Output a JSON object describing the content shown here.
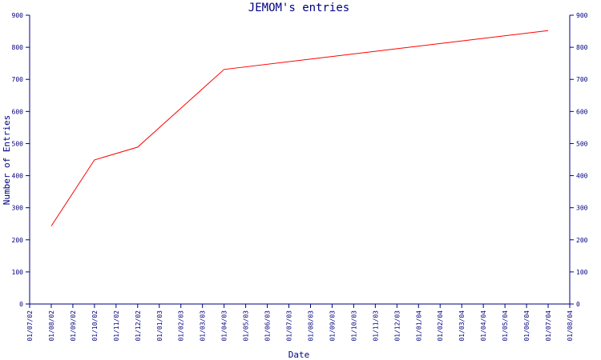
{
  "chart_data": {
    "type": "line",
    "title": "JEMOM's entries",
    "xlabel": "Date",
    "ylabel": "Number of Entries",
    "x_ticks": [
      "01/07/02",
      "01/08/02",
      "01/09/02",
      "01/10/02",
      "01/11/02",
      "01/12/02",
      "01/01/03",
      "01/02/03",
      "01/03/03",
      "01/04/03",
      "01/05/03",
      "01/06/03",
      "01/07/03",
      "01/08/03",
      "01/09/03",
      "01/10/03",
      "01/11/03",
      "01/12/03",
      "01/01/04",
      "01/02/04",
      "01/03/04",
      "01/04/04",
      "01/05/04",
      "01/06/04",
      "01/07/04",
      "01/08/04"
    ],
    "y_ticks": [
      "0",
      "100",
      "200",
      "300",
      "400",
      "500",
      "600",
      "700",
      "800",
      "900"
    ],
    "ylim": [
      0,
      900
    ],
    "grid": false,
    "series": [
      {
        "color": "#ff0000",
        "points": [
          {
            "x": "01/08/02",
            "y": 243
          },
          {
            "x": "01/10/02",
            "y": 449
          },
          {
            "x": "01/12/02",
            "y": 489
          },
          {
            "x": "01/04/03",
            "y": 731
          },
          {
            "x": "01/07/04",
            "y": 852
          }
        ]
      }
    ],
    "colors": {
      "axis": "#000080",
      "text": "#000080",
      "line": "#ff0000"
    }
  }
}
